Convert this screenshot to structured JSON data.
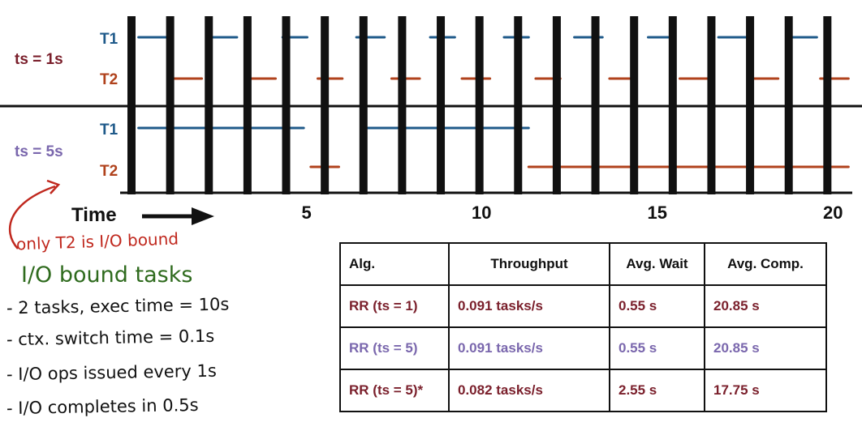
{
  "colors": {
    "t1": "#1f5a8a",
    "t2": "#b0421c",
    "ts1": "#7a1f2b",
    "ts5": "#7a67ad",
    "note_red": "#c0281e",
    "note_green": "#2f6b1e",
    "bar": "#111111"
  },
  "rows": {
    "ts1": {
      "label": "ts = 1s",
      "t1": "T1",
      "t2": "T2"
    },
    "ts5": {
      "label": "ts = 5s",
      "t1": "T1",
      "t2": "T2"
    }
  },
  "axis": {
    "title": "Time",
    "arrow": "long-right-arrow",
    "ticks": [
      "5",
      "10",
      "15",
      "20"
    ]
  },
  "schedule": {
    "tmin": 0,
    "tmax": 20,
    "ctx_switch_bars": [
      0,
      1.1,
      2.2,
      3.3,
      4.4,
      5.5,
      6.6,
      7.7,
      8.8,
      9.9,
      11,
      12.1,
      13.2,
      14.3,
      15.4,
      16.5,
      17.6,
      18.7,
      19.8
    ],
    "ts1_t1": [
      [
        0.2,
        1.0
      ],
      [
        2.2,
        3.0
      ],
      [
        4.3,
        5.0
      ],
      [
        6.4,
        7.2
      ],
      [
        8.5,
        9.2
      ],
      [
        10.6,
        11.3
      ],
      [
        12.6,
        13.4
      ],
      [
        14.7,
        15.4
      ],
      [
        16.7,
        17.5
      ],
      [
        18.8,
        19.5
      ]
    ],
    "ts1_t2": [
      [
        1.2,
        2.0
      ],
      [
        3.3,
        4.1
      ],
      [
        5.3,
        6.0
      ],
      [
        7.4,
        8.2
      ],
      [
        9.4,
        10.2
      ],
      [
        11.5,
        12.2
      ],
      [
        13.6,
        14.3
      ],
      [
        15.6,
        16.4
      ],
      [
        17.7,
        18.4
      ],
      [
        19.6,
        20.4
      ]
    ],
    "ts5_t1": [
      [
        0.2,
        4.9
      ],
      [
        6.6,
        11.3
      ]
    ],
    "ts5_t2": [
      [
        5.1,
        5.9
      ],
      [
        11.3,
        20.4
      ]
    ]
  },
  "notes": {
    "callout": "only T2 is I/O bound",
    "heading": "I/O bound tasks",
    "bullets": [
      "- 2 tasks, exec time = 10s",
      "- ctx. switch time = 0.1s",
      "- I/O ops issued every 1s",
      "- I/O completes in 0.5s"
    ]
  },
  "table": {
    "headers": [
      "Alg.",
      "Throughput",
      "Avg. Wait",
      "Avg. Comp."
    ],
    "rows": [
      {
        "cells": [
          "RR (ts = 1)",
          "0.091 tasks/s",
          "0.55 s",
          "20.85 s"
        ],
        "color": "#7a1f2b"
      },
      {
        "cells": [
          "RR (ts = 5)",
          "0.091 tasks/s",
          "0.55 s",
          "20.85 s"
        ],
        "color": "#7a67ad"
      },
      {
        "cells": [
          "RR (ts = 5)*",
          "0.082 tasks/s",
          "2.55 s",
          "17.75 s"
        ],
        "color": "#7a1f2b"
      }
    ]
  }
}
